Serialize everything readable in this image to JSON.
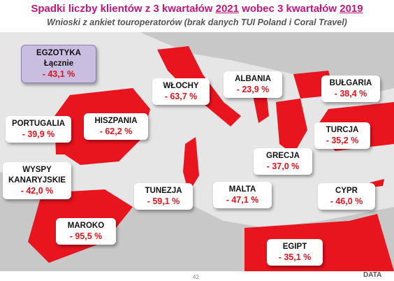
{
  "header": {
    "title_start": "Spadki liczby klientów z 3 kwartałów",
    "title_year_1": "2021",
    "title_middle": "wobec 3 kwartałów",
    "title_year_2": "2019",
    "subtitle": "Wnioski z ankiet touroperatorów (brak danych TUI Poland i Coral Travel)"
  },
  "summary": {
    "name": "EGZOTYKA",
    "sub": "Łącznie",
    "value": "- 43,1 %"
  },
  "labels": [
    {
      "name": "WŁOCHY",
      "value": "- 63,7 %"
    },
    {
      "name": "ALBANIA",
      "value": "- 23,9 %"
    },
    {
      "name": "BUŁGARIA",
      "value": "- 38,4 %"
    },
    {
      "name": "PORTUGALIA",
      "value": "- 39,9 %"
    },
    {
      "name": "HISZPANIA",
      "value": "- 62,2 %"
    },
    {
      "name": "TURCJA",
      "value": "- 35,2 %"
    },
    {
      "name": "GRECJA",
      "value": "- 37,0 %"
    },
    {
      "name": "WYSPY KANARYJSKIE",
      "value": "- 42,0 %"
    },
    {
      "name": "TUNEZJA",
      "value": "- 59,1 %"
    },
    {
      "name": "MALTA",
      "value": "- 47,1 %"
    },
    {
      "name": "CYPR",
      "value": "- 46,0 %"
    },
    {
      "name": "MAROKO",
      "value": "- 95,5 %"
    },
    {
      "name": "EGIPT",
      "value": "- 35,1 %"
    }
  ],
  "footer": {
    "page": "42",
    "logo": "DATA"
  }
}
